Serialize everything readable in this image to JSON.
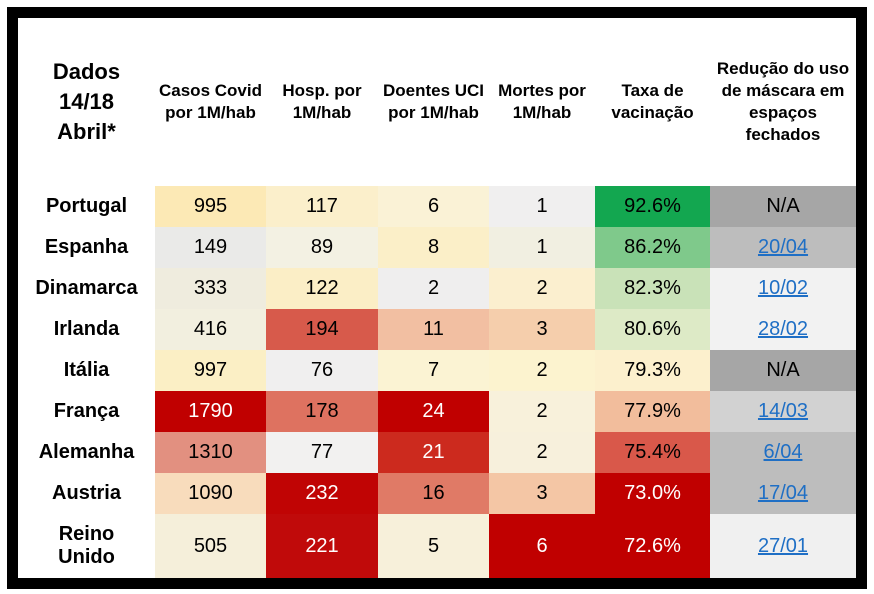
{
  "title": {
    "corner": "Dados\n14/18\nAbril*"
  },
  "colors": {
    "link": "#1F6FC5",
    "frame": "#000000",
    "text": "#000000",
    "white_text": "#FFFFFF"
  },
  "table": {
    "columns": [
      {
        "id": "casos",
        "label": "Casos Covid por 1M/hab"
      },
      {
        "id": "hosp",
        "label": "Hosp. por 1M/hab"
      },
      {
        "id": "uci",
        "label": "Doentes UCI por 1M/hab"
      },
      {
        "id": "mortes",
        "label": "Mortes por 1M/hab"
      },
      {
        "id": "taxa",
        "label": "Taxa de vacinação"
      },
      {
        "id": "reducao",
        "label": "Redução do uso de máscara em espaços fechados"
      }
    ],
    "rows": [
      {
        "country": "Portugal",
        "cells": [
          {
            "v": "995",
            "bg": "#FCE9B5",
            "fg": "#000000"
          },
          {
            "v": "117",
            "bg": "#FBEFCB",
            "fg": "#000000"
          },
          {
            "v": "6",
            "bg": "#FAF2D6",
            "fg": "#000000"
          },
          {
            "v": "1",
            "bg": "#F0EFEF",
            "fg": "#000000"
          },
          {
            "v": "92.6%",
            "bg": "#13A750",
            "fg": "#000000"
          },
          {
            "v": "N/A",
            "bg": "#A6A6A6",
            "fg": "#000000",
            "link": false
          }
        ]
      },
      {
        "country": "Espanha",
        "cells": [
          {
            "v": "149",
            "bg": "#EAEAE8",
            "fg": "#000000"
          },
          {
            "v": "89",
            "bg": "#F3F1E3",
            "fg": "#000000"
          },
          {
            "v": "8",
            "bg": "#FBEFC8",
            "fg": "#000000"
          },
          {
            "v": "1",
            "bg": "#F1EFE1",
            "fg": "#000000"
          },
          {
            "v": "86.2%",
            "bg": "#7FC98B",
            "fg": "#000000"
          },
          {
            "v": "20/04",
            "bg": "#BDBDBD",
            "link": true
          }
        ]
      },
      {
        "country": "Dinamarca",
        "cells": [
          {
            "v": "333",
            "bg": "#EFECDE",
            "fg": "#000000"
          },
          {
            "v": "122",
            "bg": "#FBEEC6",
            "fg": "#000000"
          },
          {
            "v": "2",
            "bg": "#EFEEEE",
            "fg": "#000000"
          },
          {
            "v": "2",
            "bg": "#FBEFCF",
            "fg": "#000000"
          },
          {
            "v": "82.3%",
            "bg": "#C9E2B8",
            "fg": "#000000"
          },
          {
            "v": "10/02",
            "bg": "#F2F2F2",
            "link": true
          }
        ]
      },
      {
        "country": "Irlanda",
        "cells": [
          {
            "v": "416",
            "bg": "#F2EFDF",
            "fg": "#000000"
          },
          {
            "v": "194",
            "bg": "#D75A4B",
            "fg": "#000000"
          },
          {
            "v": "11",
            "bg": "#F2BFA2",
            "fg": "#000000"
          },
          {
            "v": "3",
            "bg": "#F5CEAC",
            "fg": "#000000"
          },
          {
            "v": "80.6%",
            "bg": "#DDEAC6",
            "fg": "#000000"
          },
          {
            "v": "28/02",
            "bg": "#F2F2F2",
            "link": true
          }
        ]
      },
      {
        "country": "Itália",
        "cells": [
          {
            "v": "997",
            "bg": "#FBEFC5",
            "fg": "#000000"
          },
          {
            "v": "76",
            "bg": "#F0EFEF",
            "fg": "#000000"
          },
          {
            "v": "7",
            "bg": "#FBF3D3",
            "fg": "#000000"
          },
          {
            "v": "2",
            "bg": "#FCF3CF",
            "fg": "#000000"
          },
          {
            "v": "79.3%",
            "bg": "#FCF0CD",
            "fg": "#000000"
          },
          {
            "v": "N/A",
            "bg": "#A6A6A6",
            "fg": "#000000",
            "link": false
          }
        ]
      },
      {
        "country": "França",
        "cells": [
          {
            "v": "1790",
            "bg": "#C00000",
            "fg": "#FFFFFF"
          },
          {
            "v": "178",
            "bg": "#DE7260",
            "fg": "#000000"
          },
          {
            "v": "24",
            "bg": "#C00000",
            "fg": "#FFFFFF"
          },
          {
            "v": "2",
            "bg": "#F8F1DB",
            "fg": "#000000"
          },
          {
            "v": "77.9%",
            "bg": "#F2BD9C",
            "fg": "#000000"
          },
          {
            "v": "14/03",
            "bg": "#D2D2D2",
            "link": true
          }
        ]
      },
      {
        "country": "Alemanha",
        "cells": [
          {
            "v": "1310",
            "bg": "#E29080",
            "fg": "#000000"
          },
          {
            "v": "77",
            "bg": "#F2F1F0",
            "fg": "#000000"
          },
          {
            "v": "21",
            "bg": "#CC2A1E",
            "fg": "#FFFFFF"
          },
          {
            "v": "2",
            "bg": "#F7F0DC",
            "fg": "#000000"
          },
          {
            "v": "75.4%",
            "bg": "#D9584A",
            "fg": "#000000"
          },
          {
            "v": "6/04",
            "bg": "#BDBDBD",
            "link": true
          }
        ]
      },
      {
        "country": "Austria",
        "cells": [
          {
            "v": "1090",
            "bg": "#F8DCBC",
            "fg": "#000000"
          },
          {
            "v": "232",
            "bg": "#C00404",
            "fg": "#FFFFFF"
          },
          {
            "v": "16",
            "bg": "#E07A66",
            "fg": "#000000"
          },
          {
            "v": "3",
            "bg": "#F4C6A5",
            "fg": "#000000"
          },
          {
            "v": "73.0%",
            "bg": "#C00000",
            "fg": "#FFFFFF"
          },
          {
            "v": "17/04",
            "bg": "#BDBDBD",
            "link": true
          }
        ]
      },
      {
        "country": "Reino\nUnido",
        "cells": [
          {
            "v": "505",
            "bg": "#F5EFDA",
            "fg": "#000000"
          },
          {
            "v": "221",
            "bg": "#C00A0A",
            "fg": "#FFFFFF"
          },
          {
            "v": "5",
            "bg": "#F7F0DA",
            "fg": "#000000"
          },
          {
            "v": "6",
            "bg": "#C00000",
            "fg": "#FFFFFF"
          },
          {
            "v": "72.6%",
            "bg": "#C00000",
            "fg": "#FFFFFF"
          },
          {
            "v": "27/01",
            "bg": "#F0F0F0",
            "link": true
          }
        ]
      }
    ]
  },
  "chart_data": {
    "type": "table",
    "title": "Dados 14/18 Abril*",
    "columns": [
      "Casos Covid por 1M/hab",
      "Hosp. por 1M/hab",
      "Doentes UCI por 1M/hab",
      "Mortes por 1M/hab",
      "Taxa de vacinação",
      "Redução do uso de máscara em espaços fechados"
    ],
    "rows": [
      [
        "Portugal",
        995,
        117,
        6,
        1,
        "92.6%",
        "N/A"
      ],
      [
        "Espanha",
        149,
        89,
        8,
        1,
        "86.2%",
        "20/04"
      ],
      [
        "Dinamarca",
        333,
        122,
        2,
        2,
        "82.3%",
        "10/02"
      ],
      [
        "Irlanda",
        416,
        194,
        11,
        3,
        "80.6%",
        "28/02"
      ],
      [
        "Itália",
        997,
        76,
        7,
        2,
        "79.3%",
        "N/A"
      ],
      [
        "França",
        1790,
        178,
        24,
        2,
        "77.9%",
        "14/03"
      ],
      [
        "Alemanha",
        1310,
        77,
        21,
        2,
        "75.4%",
        "6/04"
      ],
      [
        "Austria",
        1090,
        232,
        16,
        3,
        "73.0%",
        "17/04"
      ],
      [
        "Reino Unido",
        505,
        221,
        5,
        6,
        "72.6%",
        "27/01"
      ]
    ],
    "layout_hints": {
      "heatmap": "red shading = worse values per column, green shading = higher vaccination rate",
      "na_cells_background": "#A6A6A6",
      "date_cells": "blue underlined hyperlinks on gray backgrounds"
    }
  }
}
